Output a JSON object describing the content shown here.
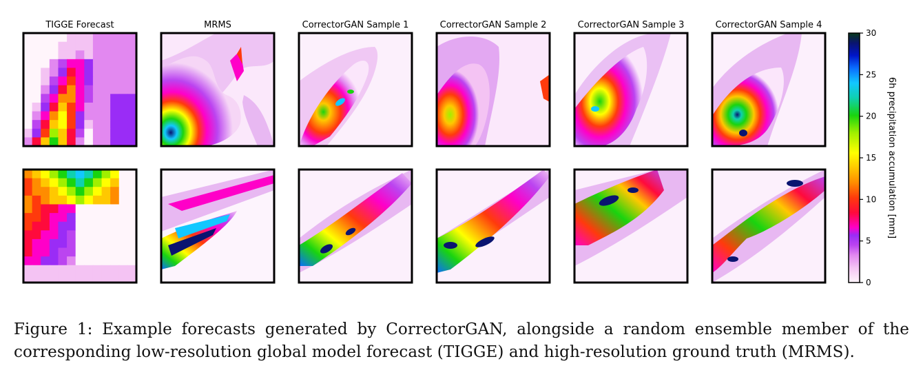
{
  "panel_titles": [
    "TIGGE Forecast",
    "MRMS",
    "CorrectorGAN Sample 1",
    "CorrectorGAN Sample 2",
    "CorrectorGAN Sample 3",
    "CorrectorGAN Sample 4"
  ],
  "colorbar": {
    "label": "6h precipitation accumulation [mm]",
    "ticks": [
      "0",
      "5",
      "10",
      "15",
      "20",
      "25",
      "30"
    ],
    "range": [
      0,
      30
    ],
    "colormap": [
      "#fff5fb",
      "#f4c3f3",
      "#e288f0",
      "#bb44f0",
      "#9a2cf6",
      "#ff00c8",
      "#ff0a3c",
      "#ff3a0c",
      "#ff8c00",
      "#ffc800",
      "#ffff00",
      "#a0f000",
      "#19d40f",
      "#0fd0b0",
      "#12c8ff",
      "#0a6cff",
      "#0015c8",
      "#0a1470",
      "#0a3a1a"
    ]
  },
  "caption": "Figure 1: Example forecasts generated by CorrectorGAN, alongside a random ensemble member of the corresponding low-resolution global model forecast (TIGGE) and high-resolution ground truth (MRMS)."
}
